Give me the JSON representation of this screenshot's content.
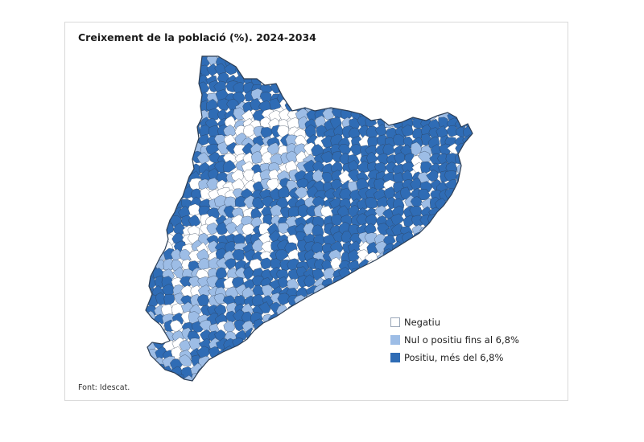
{
  "title": "Creixement de la població (%). 2024-2034",
  "source": "Font: Idescat.",
  "colors": {
    "negative": "#ffffff",
    "low": "#9dbde6",
    "high": "#2f6cb5",
    "border": "#2c3e55"
  },
  "legend": [
    {
      "key": "negative",
      "label": "Negatiu"
    },
    {
      "key": "low",
      "label": "Nul o positiu fins al 6,8%"
    },
    {
      "key": "high",
      "label": "Positiu, més del 6,8%"
    }
  ]
}
